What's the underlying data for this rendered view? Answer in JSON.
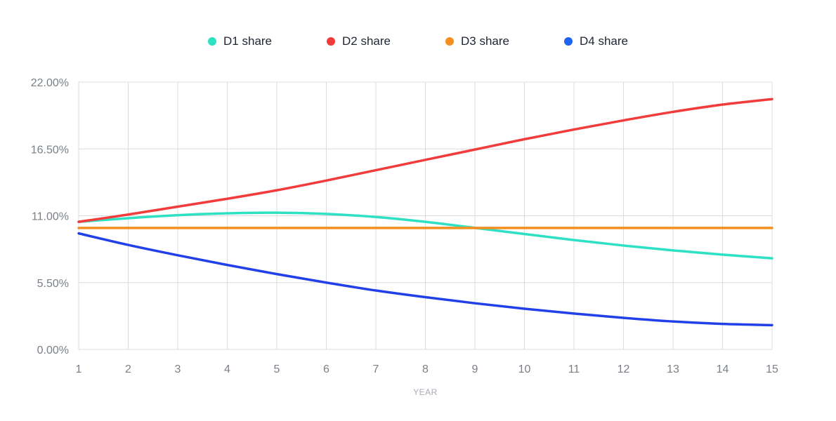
{
  "chart_data": {
    "type": "line",
    "title": "",
    "xlabel": "YEAR",
    "ylabel": "",
    "x": [
      1,
      2,
      3,
      4,
      5,
      6,
      7,
      8,
      9,
      10,
      11,
      12,
      13,
      14,
      15
    ],
    "x_tick_labels": [
      "1",
      "2",
      "3",
      "4",
      "5",
      "6",
      "7",
      "8",
      "9",
      "10",
      "11",
      "12",
      "13",
      "14",
      "15"
    ],
    "ylim": [
      0,
      22
    ],
    "y_ticks": [
      0,
      5.5,
      11,
      16.5,
      22
    ],
    "y_tick_labels": [
      "0.00%",
      "5.50%",
      "11.00%",
      "16.50%",
      "22.00%"
    ],
    "grid": true,
    "legend_position": "top-center",
    "series": [
      {
        "name": "D1 share",
        "color": "#2ee0c4",
        "values": [
          10.5,
          10.8,
          11.05,
          11.2,
          11.25,
          11.15,
          10.9,
          10.5,
          10.0,
          9.5,
          9.0,
          8.55,
          8.15,
          7.8,
          7.5
        ]
      },
      {
        "name": "D2 share",
        "color": "#f23b3b",
        "values": [
          10.5,
          11.1,
          11.75,
          12.4,
          13.1,
          13.9,
          14.75,
          15.6,
          16.45,
          17.3,
          18.1,
          18.85,
          19.55,
          20.15,
          20.6
        ]
      },
      {
        "name": "D3 share",
        "color": "#f58f1f",
        "values": [
          10.0,
          10.0,
          10.0,
          10.0,
          10.0,
          10.0,
          10.0,
          10.0,
          10.0,
          10.0,
          10.0,
          10.0,
          10.0,
          10.0,
          10.0
        ]
      },
      {
        "name": "D4 share",
        "color": "#2240e8",
        "legend_color": "#1f63f0",
        "values": [
          9.55,
          8.6,
          7.75,
          6.95,
          6.2,
          5.5,
          4.85,
          4.3,
          3.8,
          3.35,
          2.95,
          2.6,
          2.3,
          2.1,
          2.0
        ]
      }
    ]
  }
}
